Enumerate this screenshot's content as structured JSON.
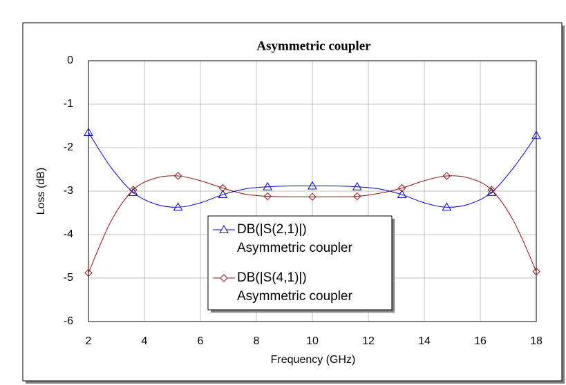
{
  "chart_data": {
    "type": "line",
    "title": "Asymmetric coupler",
    "x_label": "Frequency (GHz)",
    "y_label": "Loss (dB)",
    "x": [
      2,
      2.8,
      3.6,
      4.4,
      5.2,
      6.0,
      6.8,
      7.6,
      8.4,
      9.2,
      10,
      10.8,
      11.6,
      12.4,
      13.2,
      14.0,
      14.8,
      15.6,
      16.4,
      17.2,
      18
    ],
    "series": [
      {
        "name": "DB(|S(2,1)|)",
        "source": "Asymmetric coupler",
        "color": "#0000c8",
        "marker": "triangle",
        "values": [
          -1.65,
          -2.45,
          -3.03,
          -3.3,
          -3.37,
          -3.27,
          -3.08,
          -2.95,
          -2.9,
          -2.88,
          -2.88,
          -2.88,
          -2.9,
          -2.95,
          -3.08,
          -3.27,
          -3.37,
          -3.3,
          -3.03,
          -2.45,
          -1.72
        ]
      },
      {
        "name": "DB(|S(4,1)|)",
        "source": "Asymmetric coupler",
        "color": "#8b1010",
        "marker": "diamond",
        "values": [
          -4.88,
          -3.7,
          -2.97,
          -2.7,
          -2.65,
          -2.76,
          -2.93,
          -3.07,
          -3.12,
          -3.13,
          -3.13,
          -3.13,
          -3.12,
          -3.05,
          -2.93,
          -2.76,
          -2.65,
          -2.7,
          -2.97,
          -3.7,
          -4.85
        ]
      }
    ],
    "xlim": [
      2,
      18
    ],
    "xticks": [
      2,
      4,
      6,
      8,
      10,
      12,
      14,
      16,
      18
    ],
    "ylim": [
      -6,
      0
    ],
    "yticks": [
      0,
      -1,
      -2,
      -3,
      -4,
      -5,
      -6
    ],
    "grid": true
  }
}
